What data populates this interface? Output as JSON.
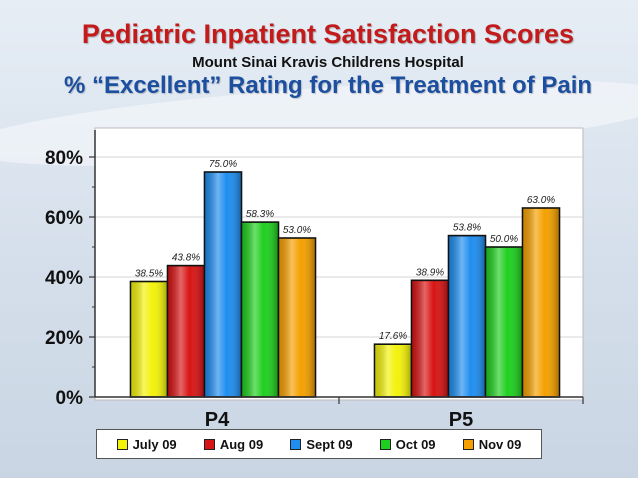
{
  "title": "Pediatric Inpatient Satisfaction Scores",
  "subtitle": "Mount Sinai Kravis Childrens Hospital",
  "subtitle2": "% “Excellent” Rating for the Treatment of Pain",
  "chart_data": {
    "type": "bar",
    "categories": [
      "P4",
      "P5"
    ],
    "series": [
      {
        "name": "July 09",
        "values": [
          38.5,
          17.6
        ],
        "labels": [
          "38.5%",
          "17.6%"
        ],
        "color": "#f2f20a"
      },
      {
        "name": "Aug 09",
        "values": [
          43.8,
          38.9
        ],
        "labels": [
          "43.8%",
          "38.9%"
        ],
        "color": "#d81414"
      },
      {
        "name": "Sept 09",
        "values": [
          75.0,
          53.8
        ],
        "labels": [
          "75.0%",
          "53.8%"
        ],
        "color": "#1f8ef0"
      },
      {
        "name": "Oct 09",
        "values": [
          58.3,
          50.0
        ],
        "labels": [
          "58.3%",
          "50.0%"
        ],
        "color": "#1fcf1f"
      },
      {
        "name": "Nov 09",
        "values": [
          53.0,
          63.0
        ],
        "labels": [
          "53.0%",
          "63.0%"
        ],
        "color": "#f5a000"
      }
    ],
    "yticks": [
      "0%",
      "20%",
      "40%",
      "60%",
      "80%"
    ],
    "ylim": [
      0,
      80
    ],
    "grid": true,
    "legend_position": "bottom"
  }
}
